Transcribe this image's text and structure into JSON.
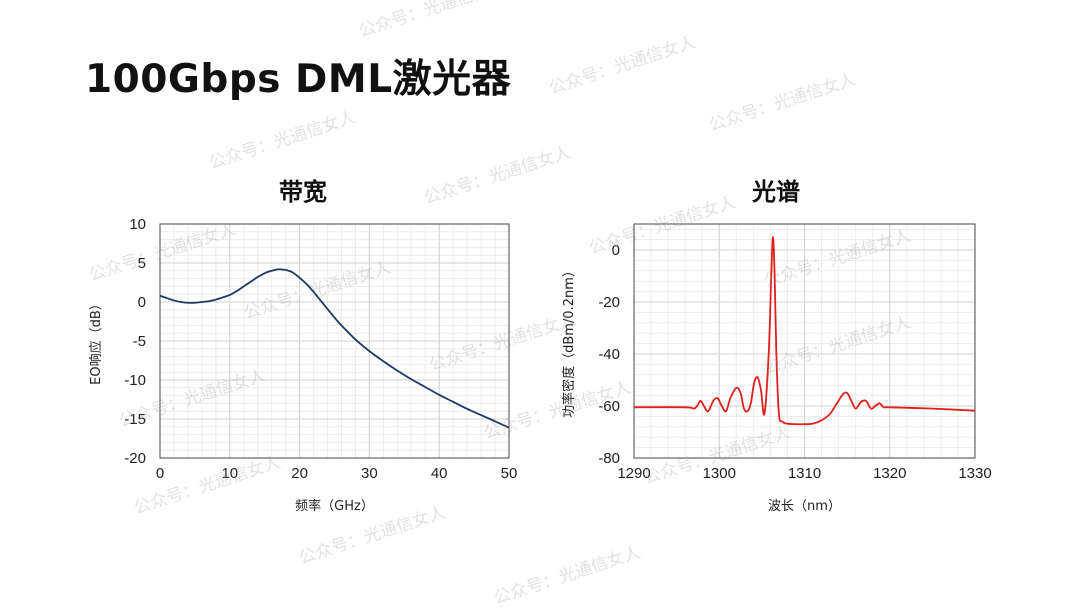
{
  "slide": {
    "title": "100Gbps DML激光器",
    "watermark_text": "公众号：光通信女人"
  },
  "chart_data": [
    {
      "id": "bandwidth",
      "type": "line",
      "title": "带宽",
      "xlabel": "频率（GHz）",
      "ylabel": "EO响应（dB）",
      "xlim": [
        0,
        50
      ],
      "ylim": [
        -20,
        10
      ],
      "xticks": [
        0,
        10,
        20,
        30,
        40,
        50
      ],
      "yticks": [
        10,
        5,
        0,
        -5,
        -10,
        -15,
        -20
      ],
      "grid": true,
      "series": [
        {
          "color": "#1f3864",
          "x": [
            0,
            1,
            2,
            3,
            4,
            5,
            6,
            7,
            8,
            9,
            10,
            11,
            12,
            13,
            14,
            15,
            16,
            17,
            18,
            19,
            20,
            21,
            22,
            23,
            24,
            25,
            26,
            28,
            30,
            32,
            34,
            36,
            38,
            40,
            42,
            44,
            46,
            48,
            50
          ],
          "y": [
            0.8,
            0.5,
            0.2,
            0.0,
            -0.1,
            -0.1,
            0.0,
            0.1,
            0.3,
            0.6,
            0.9,
            1.4,
            2.0,
            2.6,
            3.2,
            3.7,
            4.0,
            4.2,
            4.1,
            3.8,
            3.1,
            2.3,
            1.3,
            0.2,
            -0.9,
            -2.0,
            -3.0,
            -4.8,
            -6.3,
            -7.6,
            -8.8,
            -9.9,
            -10.9,
            -11.9,
            -12.8,
            -13.7,
            -14.5,
            -15.3,
            -16.1
          ]
        }
      ]
    },
    {
      "id": "spectrum",
      "type": "line",
      "title": "光谱",
      "xlabel": "波长（nm）",
      "ylabel": "功率密度（dBm/0.2nm）",
      "xlim": [
        1290,
        1330
      ],
      "ylim": [
        -80,
        10
      ],
      "xticks": [
        1290,
        1300,
        1310,
        1320,
        1330
      ],
      "yticks": [
        0,
        -20,
        -40,
        -60,
        -80
      ],
      "grid": true,
      "series": [
        {
          "color": "#e0201c",
          "x": [
            1290,
            1296,
            1297,
            1297.4,
            1297.8,
            1298.2,
            1298.7,
            1299.3,
            1299.8,
            1300.3,
            1300.8,
            1301.3,
            1302.0,
            1302.5,
            1302.9,
            1303.3,
            1303.7,
            1304.1,
            1304.5,
            1304.9,
            1305.3,
            1305.8,
            1306.1,
            1306.3,
            1306.5,
            1306.7,
            1307.0,
            1307.4,
            1308.0,
            1309,
            1310,
            1311,
            1312,
            1313,
            1313.8,
            1314.5,
            1315.0,
            1315.5,
            1316.0,
            1316.6,
            1317.2,
            1317.8,
            1318.3,
            1318.8,
            1319.3,
            1320,
            1325,
            1330
          ],
          "y": [
            -60.5,
            -60.5,
            -61,
            -60,
            -58,
            -60,
            -62,
            -58,
            -57,
            -60,
            -62,
            -57,
            -53,
            -55,
            -61,
            -62,
            -59,
            -51,
            -49,
            -54,
            -63,
            -40,
            -10,
            5,
            -10,
            -40,
            -63,
            -66,
            -66.8,
            -67,
            -67,
            -66.8,
            -65.5,
            -63,
            -59,
            -55.5,
            -55,
            -58,
            -61,
            -58.5,
            -58,
            -61,
            -60,
            -59,
            -60.5,
            -60.5,
            -61,
            -61.8
          ]
        }
      ]
    }
  ]
}
